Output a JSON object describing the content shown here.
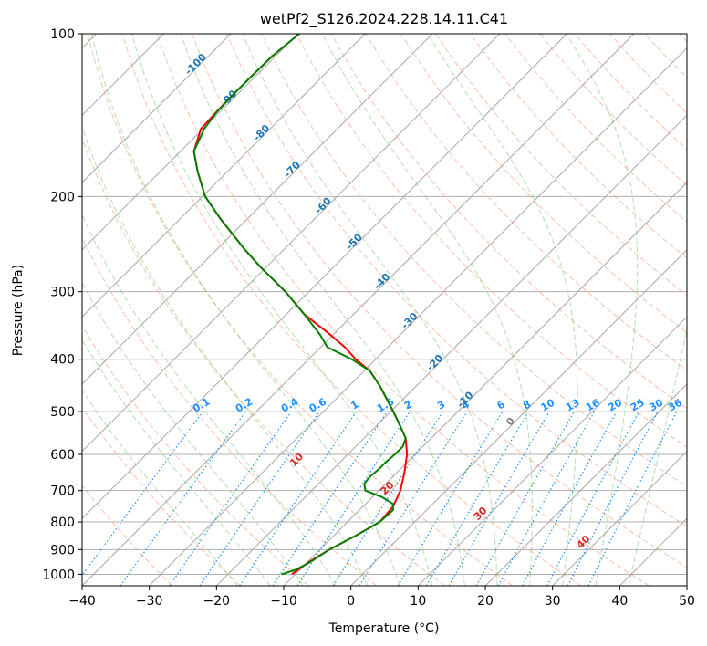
{
  "chart_data": {
    "type": "line",
    "title": "wetPf2_S126.2024.228.14.11.C41",
    "xlabel": "Temperature (°C)",
    "ylabel": "Pressure (hPa)",
    "x_ticks": [
      -40,
      -30,
      -20,
      -10,
      0,
      10,
      20,
      30,
      40,
      50
    ],
    "y_ticks": [
      100,
      200,
      300,
      400,
      500,
      600,
      700,
      800,
      900,
      1000
    ],
    "xlim": [
      -40,
      50
    ],
    "ylim": [
      1050,
      100
    ],
    "y_scale": "log",
    "grid": true,
    "colors": {
      "temperature": "#ff0000",
      "dewpoint": "#008000",
      "dry_adiabat": "#fc8d62",
      "moist_adiabat": "#66c266",
      "mixing_ratio": "#1e90ff",
      "isotherm_label": "#1f77b4",
      "theta_label": "#d62728"
    },
    "isotherm_labels": [
      "-100",
      "-90",
      "-80",
      "-70",
      "-60",
      "-50",
      "-40",
      "-30",
      "-20",
      "-10"
    ],
    "zero_isotherm_label": "0",
    "theta_labels": [
      "10",
      "20",
      "30",
      "40"
    ],
    "mixing_ratio_labels": [
      "0.1",
      "0.2",
      "0.4",
      "0.6",
      "1",
      "1.5",
      "2",
      "3",
      "4",
      "6",
      "8",
      "10",
      "13",
      "16",
      "20",
      "25",
      "30",
      "36"
    ],
    "series": [
      {
        "key": "temperature",
        "pressure": [
          1000,
          950,
          900,
          850,
          800,
          750,
          700,
          650,
          600,
          560,
          530,
          500,
          450,
          420,
          400,
          380,
          360,
          330,
          300,
          270,
          250,
          220,
          200,
          180,
          165,
          150,
          140,
          130,
          120,
          110,
          100
        ],
        "values": [
          -10.5,
          -9.8,
          -8.6,
          -6.8,
          -5.2,
          -5.5,
          -6.8,
          -8.8,
          -11.2,
          -13.8,
          -16.6,
          -19.6,
          -25.2,
          -29.2,
          -33.0,
          -36.4,
          -40.5,
          -47.4,
          -53.5,
          -60.9,
          -66.0,
          -74.0,
          -79.6,
          -84.4,
          -88.0,
          -90.3,
          -90.5,
          -90.6,
          -90.6,
          -90.5,
          -89.8
        ]
      },
      {
        "key": "dewpoint",
        "pressure": [
          1000,
          980,
          950,
          900,
          850,
          800,
          760,
          740,
          720,
          700,
          680,
          660,
          640,
          620,
          600,
          580,
          560,
          530,
          500,
          450,
          420,
          400,
          380,
          360,
          330,
          300,
          270,
          250,
          220,
          200,
          180,
          165,
          150,
          140,
          130,
          120,
          110,
          100
        ],
        "values": [
          -12.0,
          -10.6,
          -9.6,
          -8.6,
          -6.8,
          -5.2,
          -5.0,
          -6.0,
          -8.5,
          -12.0,
          -13.2,
          -13.4,
          -13.2,
          -13.2,
          -13.0,
          -13.0,
          -13.8,
          -16.6,
          -19.6,
          -25.2,
          -29.2,
          -33.6,
          -39.0,
          -42.0,
          -47.4,
          -53.5,
          -60.9,
          -66.0,
          -74.0,
          -79.6,
          -84.4,
          -88.0,
          -89.8,
          -90.4,
          -90.6,
          -90.6,
          -90.5,
          -89.8
        ]
      }
    ]
  }
}
